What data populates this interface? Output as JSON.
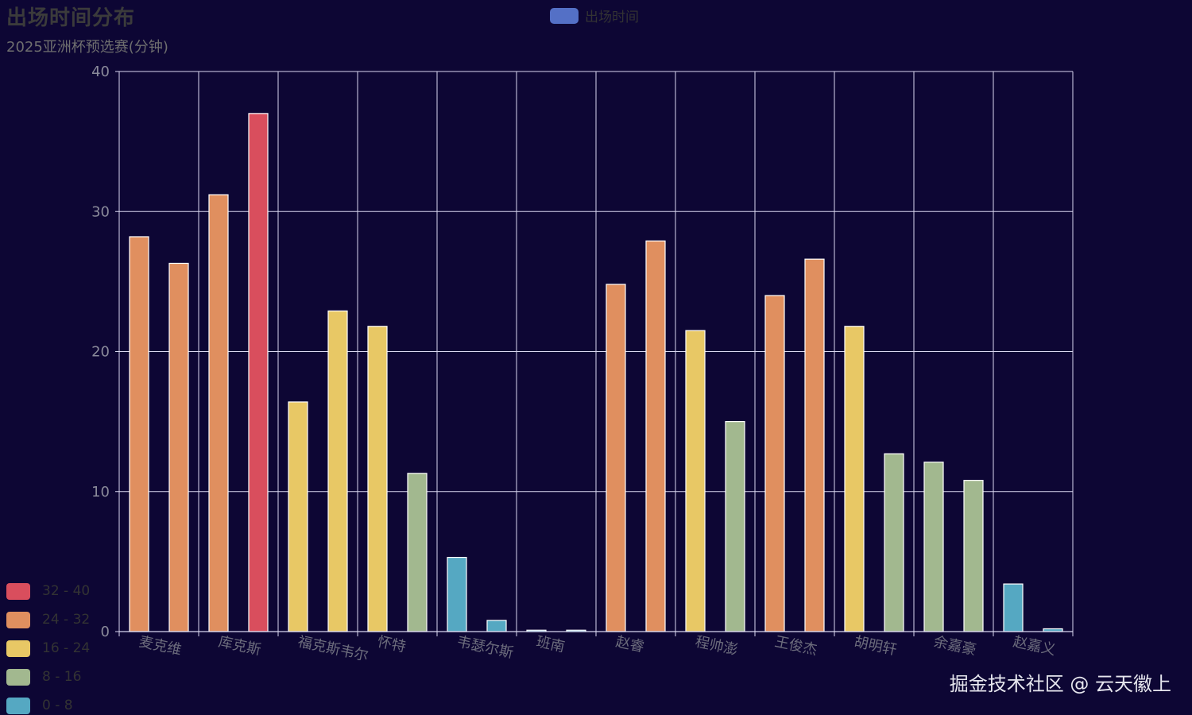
{
  "chart_data": {
    "type": "bar",
    "title": "出场时间分布",
    "subtitle": "2025亚洲杯预选赛(分钟)",
    "legend": [
      {
        "name": "出场时间",
        "color": "#5470c6"
      }
    ],
    "categories": [
      "麦克维",
      "库克斯",
      "福克斯韦尔",
      "怀特",
      "韦瑟尔斯",
      "班南",
      "赵睿",
      "程帅澎",
      "王俊杰",
      "胡明轩",
      "余嘉豪",
      "赵嘉义"
    ],
    "series": [
      {
        "name": "出场时间",
        "values": [
          28.2,
          31.2,
          16.4,
          21.8,
          5.3,
          0.1,
          24.8,
          21.5,
          24.0,
          21.8,
          12.1,
          3.4
        ]
      },
      {
        "name": "出场时间",
        "values": [
          26.3,
          37.0,
          22.9,
          11.3,
          0.8,
          0.1,
          27.9,
          15.0,
          26.6,
          12.7,
          10.8,
          0.2
        ]
      }
    ],
    "ylim": [
      0,
      40
    ],
    "yticks": [
      0,
      10,
      20,
      30,
      40
    ],
    "grid": true,
    "visual_map": [
      {
        "label": "32 - 40",
        "min": 32,
        "max": 40,
        "color": "#d94e5d"
      },
      {
        "label": "24 - 32",
        "min": 24,
        "max": 32,
        "color": "#e08f5f"
      },
      {
        "label": "16 - 24",
        "min": 16,
        "max": 24,
        "color": "#e8c865"
      },
      {
        "label": "8 - 16",
        "min": 8,
        "max": 16,
        "color": "#a2b88f"
      },
      {
        "label": "0 - 8",
        "min": 0,
        "max": 8,
        "color": "#55a8c2"
      }
    ]
  },
  "watermark": "掘金技术社区 @ 云天徽上",
  "colors": {
    "background": "#0d0634",
    "grid": "#d9d7f0",
    "bar_stroke": "#ffffff"
  }
}
